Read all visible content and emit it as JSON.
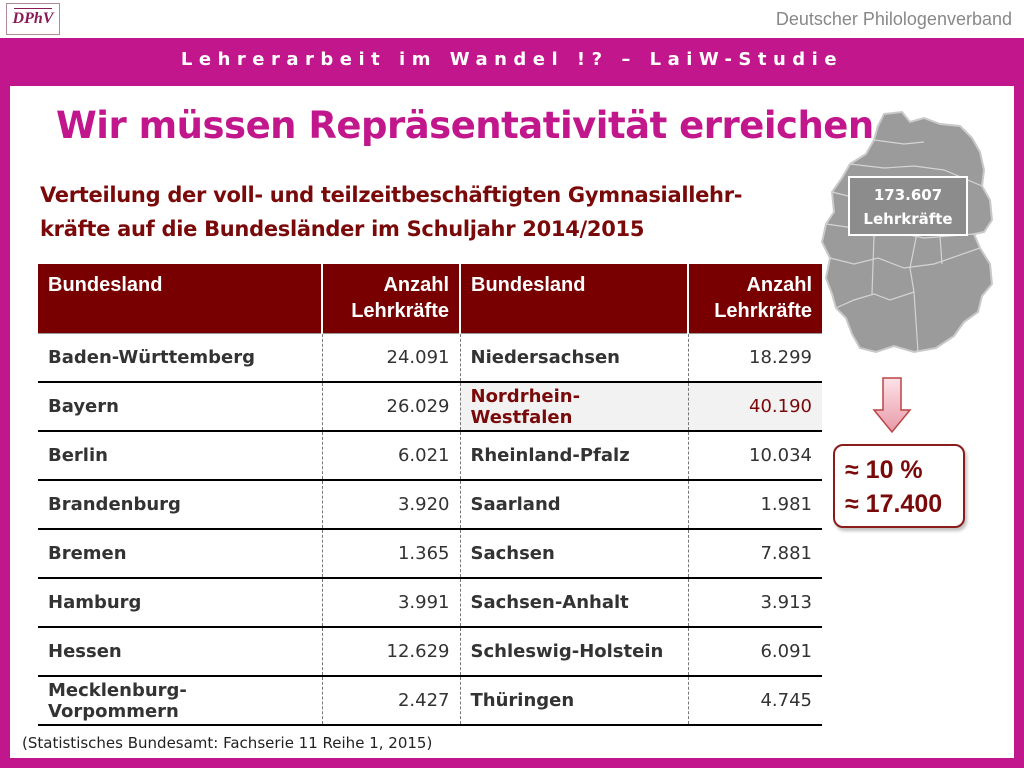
{
  "header": {
    "logo_text": "DPhV",
    "org_name": "Deutscher Philologenverband"
  },
  "banner": {
    "text": "Lehrerarbeit im Wandel !? – LaiW-Studie"
  },
  "slide": {
    "title": "Wir müssen Repräsentativität erreichen.",
    "subtitle_line1": "Verteilung der voll- und teilzeitbeschäftigten Gymnasiallehr-",
    "subtitle_line2": "kräfte auf die Bundesländer im Schuljahr 2014/2015"
  },
  "table": {
    "headers": {
      "land": "Bundesland",
      "count_line1": "Anzahl",
      "count_line2": "Lehrkräfte"
    },
    "rows": [
      {
        "land_a": "Baden-Württemberg",
        "val_a": "24.091",
        "land_b": "Niedersachsen",
        "val_b": "18.299"
      },
      {
        "land_a": "Bayern",
        "val_a": "26.029",
        "land_b": "Nordrhein-Westfalen",
        "val_b": "40.190"
      },
      {
        "land_a": "Berlin",
        "val_a": "6.021",
        "land_b": "Rheinland-Pfalz",
        "val_b": "10.034"
      },
      {
        "land_a": "Brandenburg",
        "val_a": "3.920",
        "land_b": "Saarland",
        "val_b": "1.981"
      },
      {
        "land_a": "Bremen",
        "val_a": "1.365",
        "land_b": "Sachsen",
        "val_b": "7.881"
      },
      {
        "land_a": "Hamburg",
        "val_a": "3.991",
        "land_b": "Sachsen-Anhalt",
        "val_b": "3.913"
      },
      {
        "land_a": "Hessen",
        "val_a": "12.629",
        "land_b": "Schleswig-Holstein",
        "val_b": "6.091"
      },
      {
        "land_a": "Mecklenburg-Vorpommern",
        "val_a": "2.427",
        "land_b": "Thüringen",
        "val_b": "4.745"
      }
    ],
    "highlighted_land": "Nordrhein-Westfalen"
  },
  "source": "(Statistisches Bundesamt: Fachserie 11 Reihe 1, 2015)",
  "map": {
    "total_value": "173.607",
    "total_label": "Lehrkräfte",
    "icon": "germany-map-icon"
  },
  "result": {
    "percent": "≈ 10 %",
    "count": "≈ 17.400"
  },
  "colors": {
    "frame": "#c2168c",
    "header_bg": "#780000",
    "dark_red_text": "#7a0a0a",
    "map_gray": "#9b9b9b"
  }
}
